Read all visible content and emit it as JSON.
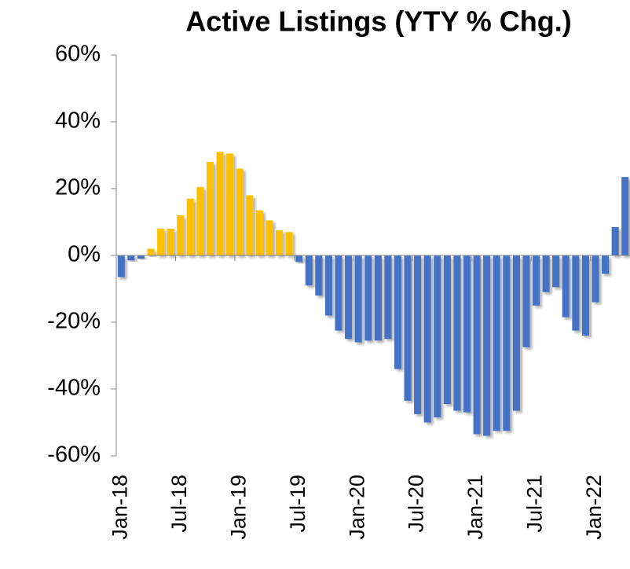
{
  "chart_data": {
    "type": "bar",
    "title": "Active Listings (YTY % Chg.)",
    "categories": [
      "Jan-18",
      null,
      null,
      null,
      null,
      null,
      "Jul-18",
      null,
      null,
      null,
      null,
      null,
      "Jan-19",
      null,
      null,
      null,
      null,
      null,
      "Jul-19",
      null,
      null,
      null,
      null,
      null,
      "Jan-20",
      null,
      null,
      null,
      null,
      null,
      "Jul-20",
      null,
      null,
      null,
      null,
      null,
      "Jan-21",
      null,
      null,
      null,
      null,
      null,
      "Jul-21",
      null,
      null,
      null,
      null,
      null,
      "Jan-22",
      null,
      null,
      null
    ],
    "values": [
      -6.5,
      -1.5,
      -1,
      2,
      8,
      8,
      12,
      17,
      20.5,
      28,
      31,
      30.5,
      26,
      18,
      13.5,
      10.5,
      7.5,
      7,
      -2,
      -9,
      -12,
      -18,
      -22.5,
      -25,
      -26,
      -25.5,
      -25.5,
      -25,
      -34,
      -43.5,
      -47.5,
      -50,
      -48.5,
      -44.5,
      -46.5,
      -47,
      -53.5,
      -54,
      -52.5,
      -52.5,
      -46.5,
      -27.5,
      -15,
      -11,
      -9.5,
      -18.5,
      -22.5,
      -24,
      -14,
      -5.5,
      8.5,
      23.5
    ],
    "colors": [
      "#4472c4",
      "#4472c4",
      "#4472c4",
      "#ffc000",
      "#ffc000",
      "#ffc000",
      "#ffc000",
      "#ffc000",
      "#ffc000",
      "#ffc000",
      "#ffc000",
      "#ffc000",
      "#ffc000",
      "#ffc000",
      "#ffc000",
      "#ffc000",
      "#ffc000",
      "#ffc000",
      "#4472c4",
      "#4472c4",
      "#4472c4",
      "#4472c4",
      "#4472c4",
      "#4472c4",
      "#4472c4",
      "#4472c4",
      "#4472c4",
      "#4472c4",
      "#4472c4",
      "#4472c4",
      "#4472c4",
      "#4472c4",
      "#4472c4",
      "#4472c4",
      "#4472c4",
      "#4472c4",
      "#4472c4",
      "#4472c4",
      "#4472c4",
      "#4472c4",
      "#4472c4",
      "#4472c4",
      "#4472c4",
      "#4472c4",
      "#4472c4",
      "#4472c4",
      "#4472c4",
      "#4472c4",
      "#4472c4",
      "#4472c4",
      "#4472c4",
      "#4472c4"
    ],
    "ylim": [
      -60,
      60
    ],
    "yticks": [
      {
        "value": -60,
        "label": "-60%"
      },
      {
        "value": -40,
        "label": "-40%"
      },
      {
        "value": -20,
        "label": "-20%"
      },
      {
        "value": 0,
        "label": "0%"
      },
      {
        "value": 20,
        "label": "20%"
      },
      {
        "value": 40,
        "label": "40%"
      },
      {
        "value": 60,
        "label": "60%"
      }
    ],
    "grid": false
  }
}
